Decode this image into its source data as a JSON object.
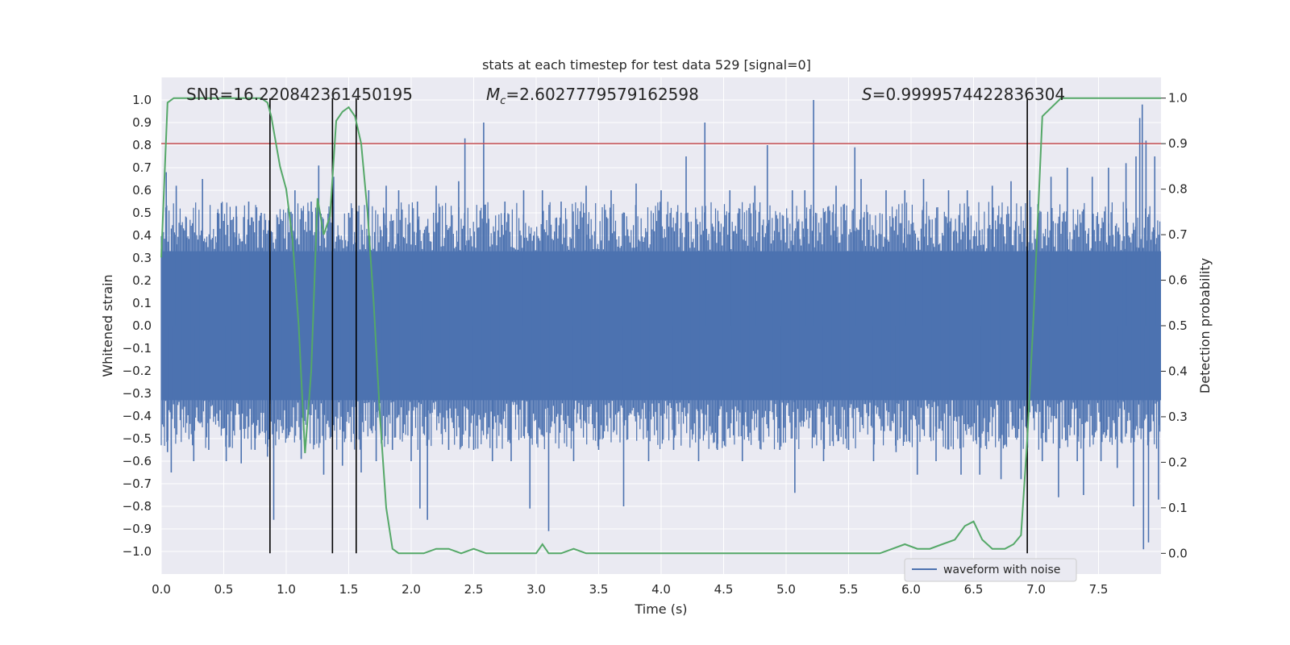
{
  "chart_data": {
    "type": "line",
    "title": "stats at each timestep for test data 529 [signal=0]",
    "xlabel": "Time (s)",
    "ylabel": "Whitened strain",
    "y2label": "Detection probability",
    "xlim": [
      0.0,
      8.0
    ],
    "ylim": [
      -1.1,
      1.1
    ],
    "y2lim": [
      -0.0455,
      1.0455
    ],
    "x_ticks": [
      "0.0",
      "0.5",
      "1.0",
      "1.5",
      "2.0",
      "2.5",
      "3.0",
      "3.5",
      "4.0",
      "4.5",
      "5.0",
      "5.5",
      "6.0",
      "6.5",
      "7.0",
      "7.5"
    ],
    "y_ticks": [
      "1.0",
      "0.9",
      "0.8",
      "0.7",
      "0.6",
      "0.5",
      "0.4",
      "0.3",
      "0.2",
      "0.1",
      "0.0",
      "−0.1",
      "−0.2",
      "−0.3",
      "−0.4",
      "−0.5",
      "−0.6",
      "−0.7",
      "−0.8",
      "−0.9",
      "−1.0"
    ],
    "y2_ticks": [
      "1.0",
      "0.9",
      "0.8",
      "0.7",
      "0.6",
      "0.5",
      "0.4",
      "0.3",
      "0.2",
      "0.1",
      "0.0"
    ],
    "annotations": {
      "snr": "SNR=16.220842361450195",
      "mc_symbol": "M",
      "mc_sub": "c",
      "mc_value": "=2.6027779579162598",
      "s_symbol": "S",
      "s_value": "=0.9999574422836304"
    },
    "threshold": {
      "axis": "y2",
      "value": 0.9,
      "color": "#c44e52"
    },
    "vertical_lines_x": [
      0.87,
      1.37,
      1.56,
      6.93
    ],
    "waveform": {
      "name": "waveform with noise",
      "color": "#4c72b0",
      "dense_band": 0.33,
      "spikes": [
        [
          0.04,
          0.68
        ],
        [
          0.05,
          -0.56
        ],
        [
          0.08,
          -0.65
        ],
        [
          0.12,
          0.62
        ],
        [
          0.2,
          0.48
        ],
        [
          0.26,
          -0.6
        ],
        [
          0.33,
          0.65
        ],
        [
          0.38,
          -0.55
        ],
        [
          0.45,
          0.5
        ],
        [
          0.52,
          -0.6
        ],
        [
          0.6,
          0.53
        ],
        [
          0.64,
          -0.61
        ],
        [
          0.7,
          0.55
        ],
        [
          0.75,
          -0.55
        ],
        [
          0.8,
          0.5
        ],
        [
          0.85,
          -0.58
        ],
        [
          0.9,
          -0.86
        ],
        [
          0.95,
          0.45
        ],
        [
          1.0,
          -0.5
        ],
        [
          1.07,
          0.6
        ],
        [
          1.12,
          -0.59
        ],
        [
          1.2,
          0.55
        ],
        [
          1.26,
          0.71
        ],
        [
          1.3,
          -0.66
        ],
        [
          1.38,
          0.66
        ],
        [
          1.45,
          -0.62
        ],
        [
          1.5,
          0.5
        ],
        [
          1.6,
          -0.65
        ],
        [
          1.66,
          0.6
        ],
        [
          1.72,
          -0.6
        ],
        [
          1.8,
          0.62
        ],
        [
          1.85,
          -0.55
        ],
        [
          1.9,
          0.6
        ],
        [
          2.0,
          -0.6
        ],
        [
          2.05,
          0.55
        ],
        [
          2.07,
          -0.81
        ],
        [
          2.13,
          -0.86
        ],
        [
          2.2,
          0.62
        ],
        [
          2.3,
          -0.55
        ],
        [
          2.38,
          0.64
        ],
        [
          2.43,
          0.83
        ],
        [
          2.5,
          -0.55
        ],
        [
          2.58,
          0.9
        ],
        [
          2.65,
          -0.6
        ],
        [
          2.75,
          0.55
        ],
        [
          2.8,
          -0.6
        ],
        [
          2.9,
          0.6
        ],
        [
          2.95,
          -0.81
        ],
        [
          3.05,
          0.6
        ],
        [
          3.1,
          -0.91
        ],
        [
          3.2,
          0.55
        ],
        [
          3.3,
          -0.6
        ],
        [
          3.4,
          0.62
        ],
        [
          3.5,
          -0.55
        ],
        [
          3.6,
          0.6
        ],
        [
          3.7,
          -0.8
        ],
        [
          3.8,
          0.63
        ],
        [
          3.9,
          -0.6
        ],
        [
          4.0,
          0.6
        ],
        [
          4.1,
          -0.55
        ],
        [
          4.2,
          0.75
        ],
        [
          4.3,
          -0.6
        ],
        [
          4.35,
          0.9
        ],
        [
          4.45,
          -0.55
        ],
        [
          4.55,
          0.6
        ],
        [
          4.65,
          -0.6
        ],
        [
          4.75,
          0.62
        ],
        [
          4.85,
          0.8
        ],
        [
          4.95,
          -0.55
        ],
        [
          5.05,
          0.6
        ],
        [
          5.07,
          -0.74
        ],
        [
          5.15,
          0.6
        ],
        [
          5.22,
          1.0
        ],
        [
          5.3,
          -0.6
        ],
        [
          5.4,
          0.62
        ],
        [
          5.5,
          -0.55
        ],
        [
          5.55,
          0.79
        ],
        [
          5.6,
          0.65
        ],
        [
          5.7,
          -0.6
        ],
        [
          5.8,
          0.6
        ],
        [
          5.88,
          -0.56
        ],
        [
          5.95,
          0.6
        ],
        [
          6.05,
          -0.66
        ],
        [
          6.1,
          0.65
        ],
        [
          6.2,
          -0.6
        ],
        [
          6.3,
          0.6
        ],
        [
          6.4,
          -0.66
        ],
        [
          6.45,
          0.6
        ],
        [
          6.55,
          -0.66
        ],
        [
          6.65,
          0.62
        ],
        [
          6.72,
          -0.68
        ],
        [
          6.8,
          0.64
        ],
        [
          6.88,
          -0.68
        ],
        [
          6.95,
          0.6
        ],
        [
          7.05,
          -0.6
        ],
        [
          7.12,
          0.66
        ],
        [
          7.18,
          -0.76
        ],
        [
          7.25,
          0.7
        ],
        [
          7.33,
          -0.6
        ],
        [
          7.38,
          -0.75
        ],
        [
          7.45,
          0.66
        ],
        [
          7.52,
          -0.6
        ],
        [
          7.58,
          0.7
        ],
        [
          7.65,
          -0.63
        ],
        [
          7.72,
          0.72
        ],
        [
          7.78,
          -0.8
        ],
        [
          7.8,
          0.75
        ],
        [
          7.83,
          0.92
        ],
        [
          7.85,
          0.98
        ],
        [
          7.86,
          -0.99
        ],
        [
          7.88,
          0.82
        ],
        [
          7.9,
          -0.96
        ],
        [
          7.95,
          0.75
        ],
        [
          7.98,
          -0.77
        ]
      ]
    },
    "detection": {
      "color": "#55a868",
      "x": [
        0.0,
        0.05,
        0.1,
        0.15,
        0.3,
        0.5,
        0.7,
        0.75,
        0.8,
        0.85,
        0.88,
        0.95,
        1.0,
        1.05,
        1.1,
        1.15,
        1.2,
        1.25,
        1.3,
        1.35,
        1.4,
        1.45,
        1.5,
        1.55,
        1.6,
        1.65,
        1.7,
        1.75,
        1.8,
        1.85,
        1.9,
        1.95,
        2.0,
        2.1,
        2.2,
        2.3,
        2.4,
        2.5,
        2.6,
        2.8,
        2.95,
        3.0,
        3.05,
        3.1,
        3.2,
        3.3,
        3.4,
        3.5,
        3.6,
        4.0,
        4.5,
        5.0,
        5.5,
        5.75,
        5.85,
        5.95,
        6.05,
        6.15,
        6.25,
        6.35,
        6.43,
        6.5,
        6.57,
        6.65,
        6.75,
        6.82,
        6.88,
        6.93,
        6.98,
        7.05,
        7.2,
        8.0
      ],
      "y": [
        0.65,
        0.99,
        1.0,
        1.0,
        1.0,
        1.0,
        1.0,
        1.0,
        1.0,
        0.99,
        0.96,
        0.85,
        0.8,
        0.69,
        0.5,
        0.22,
        0.4,
        0.78,
        0.7,
        0.74,
        0.95,
        0.97,
        0.98,
        0.96,
        0.9,
        0.75,
        0.55,
        0.3,
        0.1,
        0.01,
        0.0,
        0.0,
        0.0,
        0.0,
        0.01,
        0.01,
        0.0,
        0.01,
        0.0,
        0.0,
        0.0,
        0.0,
        0.02,
        0.0,
        0.0,
        0.01,
        0.0,
        0.0,
        0.0,
        0.0,
        0.0,
        0.0,
        0.0,
        0.0,
        0.01,
        0.02,
        0.01,
        0.01,
        0.02,
        0.03,
        0.06,
        0.07,
        0.03,
        0.01,
        0.01,
        0.02,
        0.04,
        0.25,
        0.52,
        0.96,
        1.0,
        1.0
      ]
    },
    "legend": {
      "location": "lower-right",
      "entries": [
        "waveform with noise"
      ]
    }
  }
}
